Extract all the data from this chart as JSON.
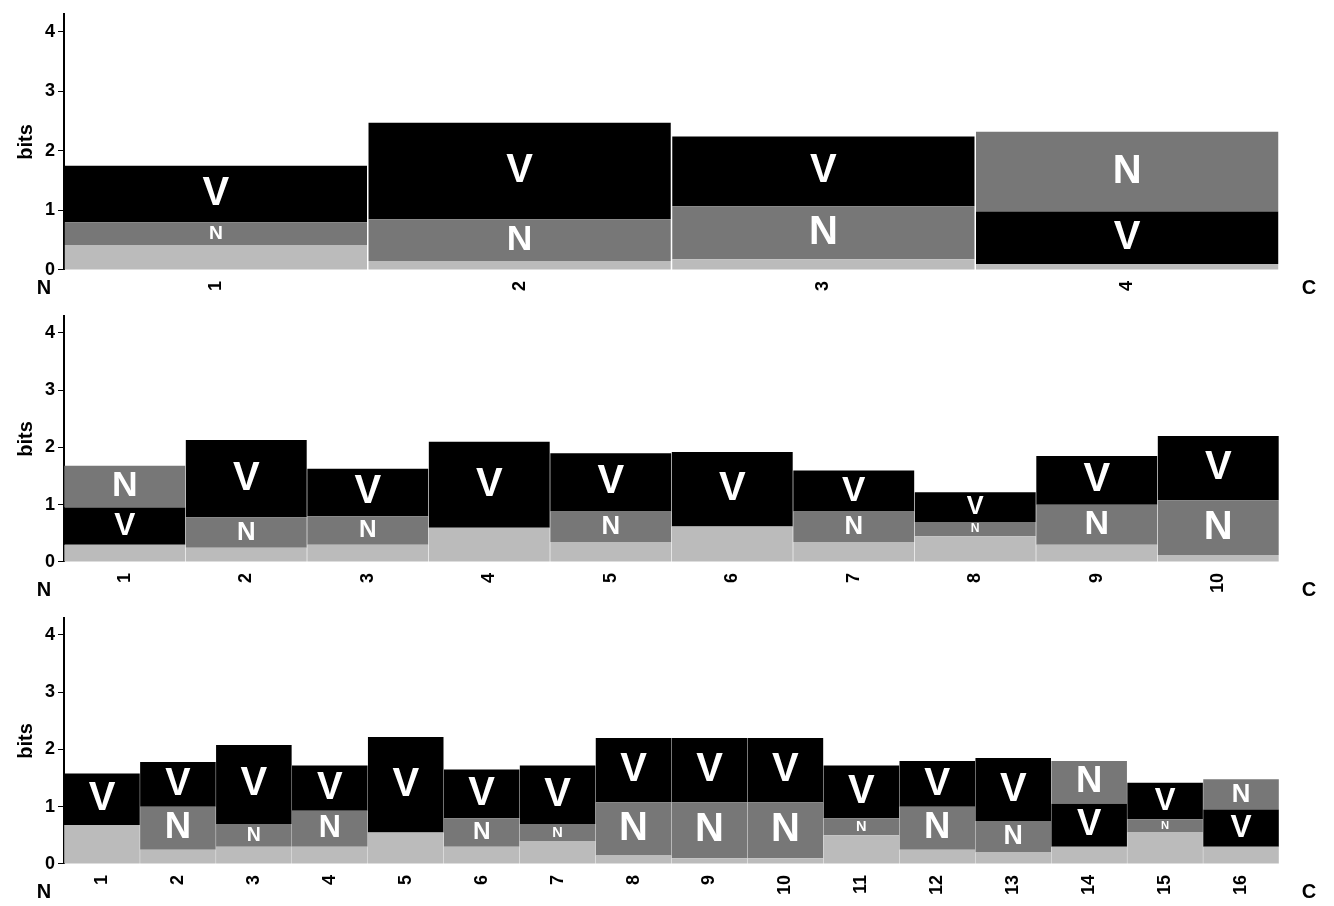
{
  "chart_data": [
    {
      "type": "bar",
      "stacked": true,
      "ylabel": "bits",
      "ylim": [
        0,
        4.3
      ],
      "yticks": [
        0,
        1,
        2,
        3,
        4
      ],
      "grid": false,
      "legend": false,
      "categories": [
        "1",
        "2",
        "3",
        "4"
      ],
      "annotations": [
        "N",
        "C"
      ],
      "series": [
        {
          "color": "#bbbbbb",
          "values": [
            0.42,
            0.15,
            0.18,
            0.1
          ]
        },
        {
          "name": "V",
          "color": "#000000",
          "values": [
            null,
            null,
            null,
            0.88
          ]
        },
        {
          "name": "N",
          "color": "#777777",
          "values": [
            0.38,
            0.7,
            0.89,
            1.34
          ]
        },
        {
          "name": "V",
          "color": "#000000",
          "values": [
            0.95,
            1.62,
            1.17,
            null
          ]
        }
      ]
    },
    {
      "type": "bar",
      "stacked": true,
      "ylabel": "bits",
      "ylim": [
        0,
        4.3
      ],
      "yticks": [
        0,
        1,
        2,
        3,
        4
      ],
      "grid": false,
      "legend": false,
      "categories": [
        "1",
        "2",
        "3",
        "4",
        "5",
        "6",
        "7",
        "8",
        "9",
        "10"
      ],
      "annotations": [
        "N",
        "C"
      ],
      "series": [
        {
          "color": "#bbbbbb",
          "values": [
            0.3,
            0.25,
            0.3,
            0.6,
            0.35,
            0.62,
            0.35,
            0.45,
            0.3,
            0.12
          ]
        },
        {
          "name": "V",
          "color": "#000000",
          "values": [
            0.65,
            null,
            null,
            null,
            null,
            null,
            null,
            null,
            null,
            null
          ]
        },
        {
          "name": "N",
          "color": "#777777",
          "values": [
            0.73,
            0.53,
            0.5,
            null,
            0.53,
            null,
            0.53,
            0.25,
            0.7,
            0.96
          ]
        },
        {
          "name": "V",
          "color": "#000000",
          "values": [
            null,
            1.35,
            0.83,
            1.5,
            1.02,
            1.3,
            0.72,
            0.52,
            0.85,
            1.12
          ]
        }
      ]
    },
    {
      "type": "bar",
      "stacked": true,
      "ylabel": "bits",
      "ylim": [
        0,
        4.3
      ],
      "yticks": [
        0,
        1,
        2,
        3,
        4
      ],
      "grid": false,
      "legend": false,
      "categories": [
        "1",
        "2",
        "3",
        "4",
        "5",
        "6",
        "7",
        "8",
        "9",
        "10",
        "11",
        "12",
        "13",
        "14",
        "15",
        "16"
      ],
      "annotations": [
        "N",
        "C"
      ],
      "series": [
        {
          "color": "#bbbbbb",
          "values": [
            0.68,
            0.25,
            0.3,
            0.3,
            0.55,
            0.3,
            0.4,
            0.15,
            0.1,
            0.1,
            0.5,
            0.25,
            0.2,
            0.3,
            0.55,
            0.3
          ]
        },
        {
          "name": "V",
          "color": "#000000",
          "values": [
            null,
            null,
            null,
            null,
            null,
            null,
            null,
            null,
            null,
            null,
            null,
            null,
            null,
            0.75,
            null,
            0.65
          ]
        },
        {
          "name": "N",
          "color": "#777777",
          "values": [
            null,
            0.75,
            0.4,
            0.63,
            null,
            0.5,
            0.3,
            0.93,
            0.98,
            0.98,
            0.3,
            0.75,
            0.55,
            0.75,
            0.23,
            0.53
          ]
        },
        {
          "name": "V",
          "color": "#000000",
          "values": [
            0.9,
            0.78,
            1.38,
            0.79,
            1.67,
            0.85,
            1.02,
            1.12,
            1.12,
            1.12,
            0.92,
            0.8,
            1.1,
            null,
            0.64,
            null
          ]
        }
      ]
    }
  ]
}
